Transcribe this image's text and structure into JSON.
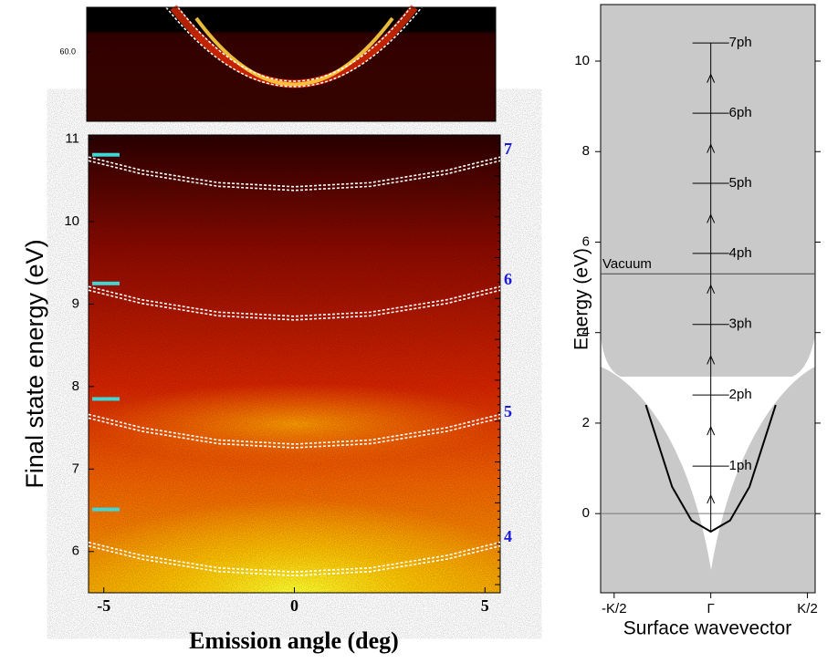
{
  "chart_data": [
    {
      "type": "inset",
      "ylim": [
        46,
        69
      ],
      "yticks": [
        {
          "value": 60,
          "label": "60.0"
        }
      ]
    },
    {
      "type": "heatmap",
      "xlabel": "Emission angle (deg)",
      "ylabel": "Final state energy (eV)",
      "xlim": [
        -5.4,
        5.4
      ],
      "ylim": [
        5.5,
        11.05
      ],
      "xticks": [
        -5,
        0,
        5
      ],
      "yticks": [
        6,
        7,
        8,
        9,
        10,
        11
      ],
      "x": [
        -5.4,
        -4,
        -2,
        0,
        2,
        4,
        5.4
      ],
      "series": [
        {
          "values": [
            10.76,
            10.6,
            10.45,
            10.4,
            10.45,
            10.6,
            10.76
          ]
        },
        {
          "values": [
            9.19,
            9.03,
            8.88,
            8.83,
            8.88,
            9.03,
            9.19
          ]
        },
        {
          "values": [
            7.64,
            7.48,
            7.33,
            7.28,
            7.33,
            7.48,
            7.64
          ]
        },
        {
          "values": [
            6.09,
            5.93,
            5.78,
            5.73,
            5.78,
            5.93,
            6.09
          ]
        }
      ],
      "markers": [
        10.81,
        9.25,
        7.85,
        6.51
      ],
      "marker_color": "#3fd6d6",
      "order_labels": [
        "7",
        "6",
        "5",
        "4"
      ],
      "order_color": "#1a1adc"
    },
    {
      "type": "band",
      "xlabel": "Surface wavevector",
      "ylabel": "Energy (eV)",
      "xlim": [
        -0.57,
        0.54
      ],
      "ylim": [
        -1.75,
        11.25
      ],
      "xticks": [
        {
          "value": -0.5,
          "label": "-K/2"
        },
        {
          "value": 0,
          "label": "Γ"
        },
        {
          "value": 0.5,
          "label": "K/2"
        }
      ],
      "yticks": [
        0,
        2,
        4,
        6,
        8,
        10
      ],
      "x": [
        -0.336,
        -0.2,
        -0.1,
        0,
        0.1,
        0.2,
        0.336
      ],
      "values": [
        2.4,
        0.59,
        -0.15,
        -0.4,
        -0.15,
        0.59,
        2.4
      ],
      "levels": [
        1.05,
        2.62,
        4.18,
        5.75,
        7.3,
        8.85,
        10.4
      ],
      "level_labels": [
        "1ph",
        "2ph",
        "3ph",
        "4ph",
        "5ph",
        "6ph",
        "7ph"
      ],
      "vacuum": 5.3,
      "vacuum_label": "Vacuum"
    }
  ]
}
